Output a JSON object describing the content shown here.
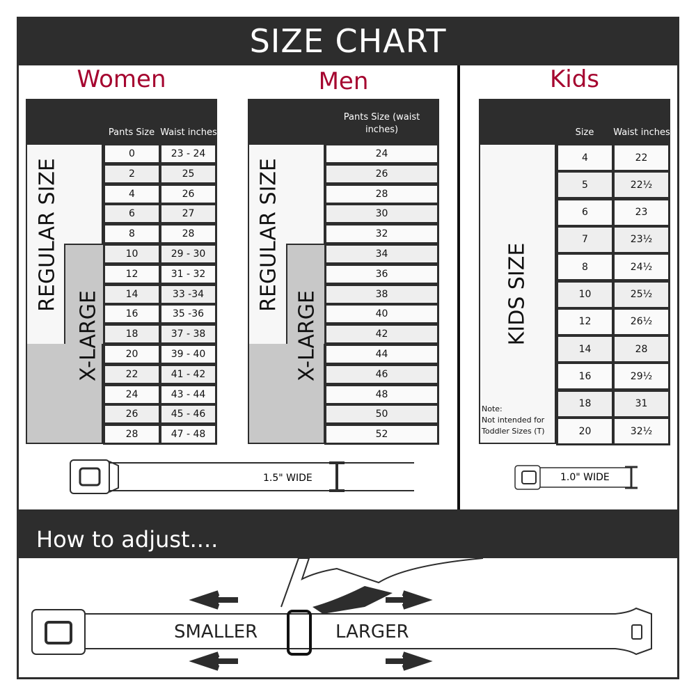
{
  "header": {
    "title": "SIZE CHART"
  },
  "women": {
    "title": "Women",
    "col1": "Pants Size",
    "col2": "Waist inches",
    "regular_label": "REGULAR SIZE",
    "xlarge_label": "X-LARGE",
    "rows": [
      [
        "0",
        "23 - 24"
      ],
      [
        "2",
        "25"
      ],
      [
        "4",
        "26"
      ],
      [
        "6",
        "27"
      ],
      [
        "8",
        "28"
      ],
      [
        "10",
        "29 - 30"
      ],
      [
        "12",
        "31 - 32"
      ],
      [
        "14",
        "33 -34"
      ],
      [
        "16",
        "35 -36"
      ],
      [
        "18",
        "37 - 38"
      ],
      [
        "20",
        "39 - 40"
      ],
      [
        "22",
        "41 - 42"
      ],
      [
        "24",
        "43 - 44"
      ],
      [
        "26",
        "45 - 46"
      ],
      [
        "28",
        "47 - 48"
      ]
    ]
  },
  "men": {
    "title": "Men",
    "col1": "Pants Size (waist inches)",
    "regular_label": "REGULAR SIZE",
    "xlarge_label": "X-LARGE",
    "rows": [
      "24",
      "26",
      "28",
      "30",
      "32",
      "34",
      "36",
      "38",
      "40",
      "42",
      "44",
      "46",
      "48",
      "50",
      "52"
    ]
  },
  "kids": {
    "title": "Kids",
    "col1": "Size",
    "col2": "Waist inches",
    "label": "KIDS SIZE",
    "note": [
      "Note:",
      "Not intended for",
      "Toddler Sizes (T)"
    ],
    "rows": [
      [
        "4",
        "22"
      ],
      [
        "5",
        "22½"
      ],
      [
        "6",
        "23"
      ],
      [
        "7",
        "23½"
      ],
      [
        "8",
        "24½"
      ],
      [
        "10",
        "25½"
      ],
      [
        "12",
        "26½"
      ],
      [
        "14",
        "28"
      ],
      [
        "16",
        "29½"
      ],
      [
        "18",
        "31"
      ],
      [
        "20",
        "32½"
      ]
    ]
  },
  "adult_belt": {
    "width_label": "1.5\" WIDE"
  },
  "kids_belt": {
    "width_label": "1.0\" WIDE"
  },
  "adjust": {
    "title": "How to adjust....",
    "smaller": "SMALLER",
    "larger": "LARGER"
  },
  "colors": {
    "dark": "#2d2d2d",
    "accent": "#a5052f",
    "xlarge_gray": "#c8c8c8",
    "stripe": "#eeeeee"
  }
}
